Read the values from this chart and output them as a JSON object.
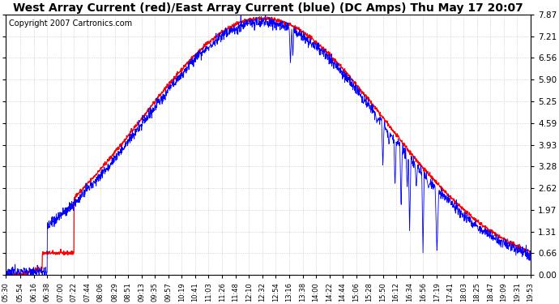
{
  "title": "West Array Current (red)/East Array Current (blue) (DC Amps) Thu May 17 20:07",
  "copyright": "Copyright 2007 Cartronics.com",
  "yticks": [
    0.0,
    0.66,
    1.31,
    1.97,
    2.62,
    3.28,
    3.93,
    4.59,
    5.25,
    5.9,
    6.56,
    7.21,
    7.87
  ],
  "ymax": 7.87,
  "ymin": 0.0,
  "xtick_labels": [
    "05:30",
    "05:54",
    "06:16",
    "06:38",
    "07:00",
    "07:22",
    "07:44",
    "08:06",
    "08:29",
    "08:51",
    "09:13",
    "09:35",
    "09:57",
    "10:19",
    "10:41",
    "11:03",
    "11:26",
    "11:48",
    "12:10",
    "12:32",
    "12:54",
    "13:16",
    "13:38",
    "14:00",
    "14:22",
    "14:44",
    "15:06",
    "15:28",
    "15:50",
    "16:12",
    "16:34",
    "16:56",
    "17:19",
    "17:41",
    "18:03",
    "18:25",
    "18:47",
    "19:09",
    "19:31",
    "19:53"
  ],
  "background_color": "#ffffff",
  "plot_bg_color": "#ffffff",
  "grid_color": "#bbbbbb",
  "line_color_red": "#ff0000",
  "line_color_blue": "#0000ff",
  "title_fontsize": 10,
  "copyright_fontsize": 7,
  "red_step_time": "07:22",
  "red_step_value": 0.66,
  "blue_rise_time": "06:38",
  "peak_time_red": "12:32",
  "peak_time_blue": "12:32",
  "peak_value_red": 7.75,
  "peak_value_blue": 7.65
}
